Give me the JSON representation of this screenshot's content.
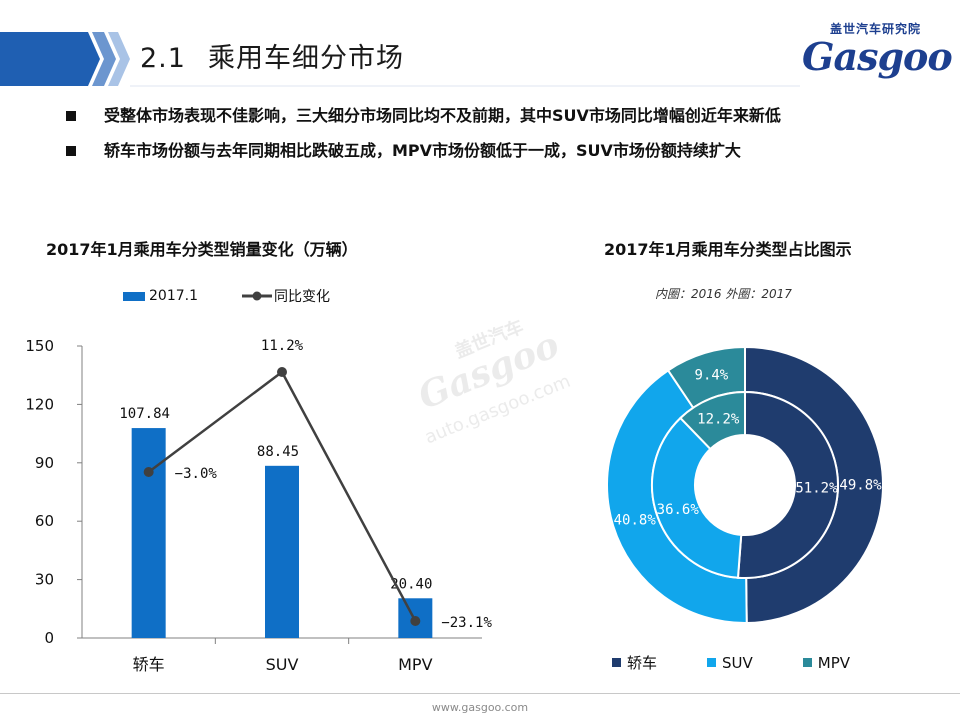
{
  "header": {
    "section_number": "2.1",
    "title": "乘用车细分市场",
    "logo_cn": "盖世汽车研究院",
    "logo_en": "Gasgoo"
  },
  "bullets": [
    "受整体市场表现不佳影响，三大细分市场同比均不及前期，其中SUV市场同比增幅创近年来新低",
    "轿车市场份额与去年同期相比跌破五成，MPV市场份额低于一成，SUV市场份额持续扩大"
  ],
  "colors": {
    "bar": "#0f6fc6",
    "line": "#404040",
    "sedan": "#1f3c6e",
    "suv": "#11a6ec",
    "mpv": "#2b8a9a"
  },
  "chart_data": [
    {
      "type": "bar",
      "title": "2017年1月乘用车分类型销量变化（万辆）",
      "categories": [
        "轿车",
        "SUV",
        "MPV"
      ],
      "ylim": [
        0,
        150
      ],
      "yticks": [
        "0",
        "30",
        "60",
        "90",
        "120",
        "150"
      ],
      "series": [
        {
          "name": "2017.1",
          "type": "bar",
          "values": [
            107.84,
            88.45,
            20.4
          ],
          "labels": [
            "107.84",
            "88.45",
            "20.40"
          ]
        },
        {
          "name": "同比变化",
          "type": "line",
          "values": [
            -3.0,
            11.2,
            -23.1
          ],
          "labels": [
            "−3.0%",
            "11.2%",
            "−23.1%"
          ]
        }
      ],
      "grid": false,
      "legend": "top"
    },
    {
      "type": "pie",
      "title": "2017年1月乘用车分类型占比图示",
      "note": "内圈：2016    外圈：2017",
      "categories": [
        "轿车",
        "SUV",
        "MPV"
      ],
      "inner": {
        "year": "2016",
        "values": [
          51.2,
          36.6,
          12.2
        ],
        "labels": [
          "51.2%",
          "36.6%",
          "12.2%"
        ]
      },
      "outer": {
        "year": "2017",
        "values": [
          49.8,
          40.8,
          9.4
        ],
        "labels": [
          "49.8%",
          "40.8%",
          "9.4%"
        ]
      },
      "legend": "bottom"
    }
  ],
  "footer": {
    "url": "www.gasgoo.com"
  },
  "watermark": {
    "cn": "盖世汽车",
    "en": "Gasgoo",
    "url": "auto.gasgoo.com"
  }
}
